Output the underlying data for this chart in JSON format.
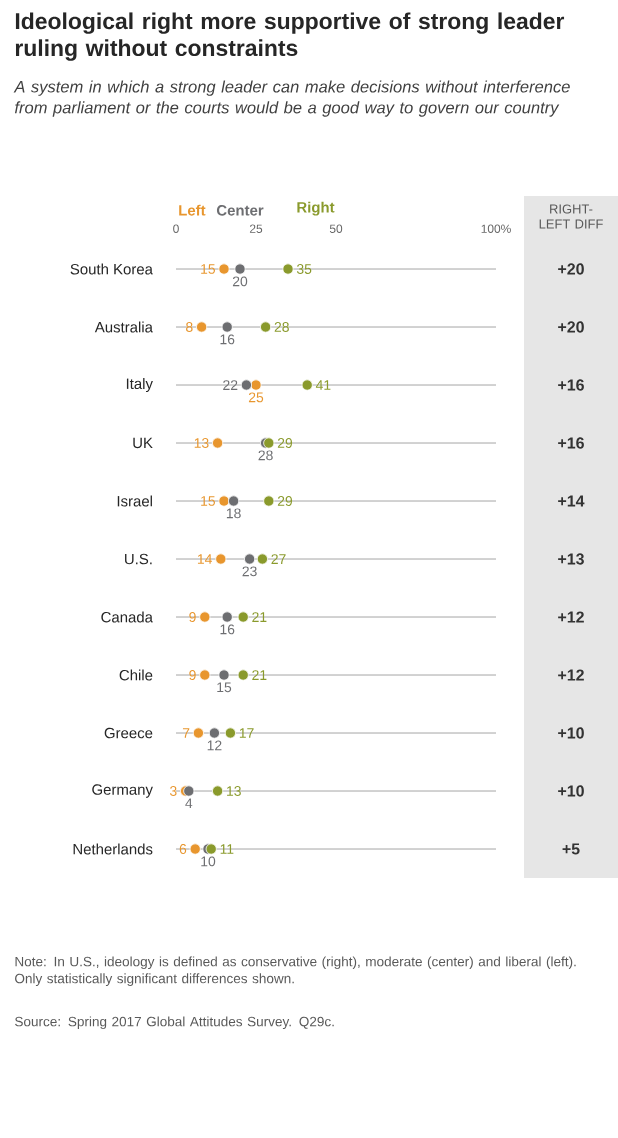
{
  "chart_data": {
    "type": "scatter",
    "orientation": "horizontal",
    "title": "Ideological right more supportive of strong leader ruling without constraints",
    "subtitle": "A system in which a strong leader can make decisions without interference from parliament or the courts would be a good way to govern our country",
    "categories": [
      "South Korea",
      "Australia",
      "Italy",
      "UK",
      "Israel",
      "U.S.",
      "Canada",
      "Chile",
      "Greece",
      "Germany",
      "Netherlands"
    ],
    "series": [
      {
        "name": "Left",
        "color": "#e8962e",
        "values": [
          15,
          8,
          25,
          13,
          15,
          14,
          9,
          9,
          7,
          3,
          6
        ]
      },
      {
        "name": "Center",
        "color": "#6d6e71",
        "values": [
          20,
          16,
          22,
          28,
          18,
          23,
          16,
          15,
          12,
          4,
          10
        ]
      },
      {
        "name": "Right",
        "color": "#8a9a2c",
        "values": [
          35,
          28,
          41,
          29,
          29,
          27,
          21,
          21,
          17,
          13,
          11
        ]
      }
    ],
    "xlim": [
      0,
      100
    ],
    "xticks": [
      0,
      25,
      50,
      {
        "value": 100,
        "label": "100%"
      }
    ],
    "grid": "y",
    "data_labels": true,
    "annotations": [
      "RIGHT-LEFT DIFF",
      "+20",
      "+20",
      "+16",
      "+16",
      "+14",
      "+13",
      "+12",
      "+12",
      "+10",
      "+10",
      "+5",
      "Note: In U.S., ideology is defined as conservative (right), moderate (center) and liberal (left). Only statistically significant differences shown.",
      "Source: Spring 2017 Global Attitudes Survey. Q29c."
    ]
  }
}
